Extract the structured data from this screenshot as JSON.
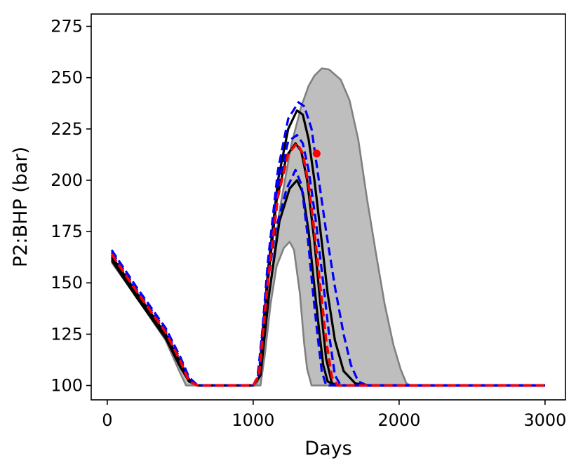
{
  "chart_data": {
    "type": "line",
    "title": "",
    "xlabel": "Days",
    "ylabel": "P2:BHP (bar)",
    "xlim": [
      -110,
      3140
    ],
    "ylim": [
      93,
      281
    ],
    "xticks": [
      0,
      1000,
      2000,
      3000
    ],
    "yticks": [
      100,
      125,
      150,
      175,
      200,
      225,
      250,
      275
    ],
    "grid": false,
    "legend": "none",
    "colors": {
      "envelope_fill": "#bebebe",
      "envelope_edge": "#808080",
      "black": "#000000",
      "blue": "#0000ff",
      "red": "#ff0000",
      "observed": "#ff0000"
    },
    "envelope": {
      "upper": [
        [
          30,
          163
        ],
        [
          200,
          146
        ],
        [
          400,
          125
        ],
        [
          500,
          112
        ],
        [
          560,
          102
        ],
        [
          600,
          100
        ],
        [
          1020,
          100
        ],
        [
          1045,
          104
        ],
        [
          1100,
          140
        ],
        [
          1180,
          185
        ],
        [
          1260,
          217
        ],
        [
          1330,
          236
        ],
        [
          1380,
          246
        ],
        [
          1420,
          251
        ],
        [
          1470,
          254.5
        ],
        [
          1520,
          254
        ],
        [
          1600,
          249
        ],
        [
          1660,
          239
        ],
        [
          1720,
          220
        ],
        [
          1780,
          191
        ],
        [
          1840,
          165
        ],
        [
          1900,
          140
        ],
        [
          1960,
          120
        ],
        [
          2010,
          108
        ],
        [
          2050,
          101
        ],
        [
          2080,
          100
        ],
        [
          3000,
          100
        ]
      ],
      "lower": [
        [
          30,
          160
        ],
        [
          200,
          143
        ],
        [
          400,
          122
        ],
        [
          500,
          106
        ],
        [
          540,
          100
        ],
        [
          1050,
          100
        ],
        [
          1080,
          115
        ],
        [
          1120,
          140
        ],
        [
          1160,
          158
        ],
        [
          1210,
          167
        ],
        [
          1250,
          170
        ],
        [
          1280,
          166
        ],
        [
          1320,
          145
        ],
        [
          1350,
          120
        ],
        [
          1370,
          108
        ],
        [
          1400,
          100
        ],
        [
          3000,
          100
        ]
      ]
    },
    "series": [
      {
        "color": "black",
        "dash": "solid",
        "width": 3.2,
        "points": [
          [
            30,
            163
          ],
          [
            200,
            145
          ],
          [
            400,
            125
          ],
          [
            500,
            111
          ],
          [
            560,
            103
          ],
          [
            620,
            100
          ],
          [
            1000,
            100
          ],
          [
            1040,
            104
          ],
          [
            1100,
            155
          ],
          [
            1170,
            200
          ],
          [
            1240,
            225
          ],
          [
            1300,
            234
          ],
          [
            1340,
            232
          ],
          [
            1380,
            220
          ],
          [
            1420,
            200
          ],
          [
            1470,
            170
          ],
          [
            1510,
            145
          ],
          [
            1560,
            122
          ],
          [
            1620,
            107
          ],
          [
            1700,
            101
          ],
          [
            1800,
            100
          ],
          [
            3000,
            100
          ]
        ]
      },
      {
        "color": "black",
        "dash": "solid",
        "width": 3.2,
        "points": [
          [
            30,
            162
          ],
          [
            200,
            144
          ],
          [
            400,
            124
          ],
          [
            500,
            110
          ],
          [
            560,
            102
          ],
          [
            620,
            100
          ],
          [
            1000,
            100
          ],
          [
            1040,
            104
          ],
          [
            1100,
            150
          ],
          [
            1160,
            190
          ],
          [
            1230,
            212
          ],
          [
            1290,
            218
          ],
          [
            1330,
            214
          ],
          [
            1370,
            200
          ],
          [
            1420,
            170
          ],
          [
            1460,
            140
          ],
          [
            1500,
            113
          ],
          [
            1540,
            101
          ],
          [
            1600,
            100
          ],
          [
            3000,
            100
          ]
        ]
      },
      {
        "color": "black",
        "dash": "solid",
        "width": 3.2,
        "points": [
          [
            30,
            161
          ],
          [
            200,
            143
          ],
          [
            400,
            123
          ],
          [
            500,
            109
          ],
          [
            560,
            102
          ],
          [
            620,
            100
          ],
          [
            1000,
            100
          ],
          [
            1050,
            105
          ],
          [
            1110,
            145
          ],
          [
            1180,
            180
          ],
          [
            1250,
            196
          ],
          [
            1300,
            200
          ],
          [
            1340,
            194
          ],
          [
            1380,
            175
          ],
          [
            1420,
            148
          ],
          [
            1450,
            128
          ],
          [
            1480,
            110
          ],
          [
            1510,
            102
          ],
          [
            1560,
            100
          ],
          [
            3000,
            100
          ]
        ]
      },
      {
        "color": "blue",
        "dash": "dashed",
        "width": 3.2,
        "points": [
          [
            30,
            166
          ],
          [
            200,
            148
          ],
          [
            400,
            128
          ],
          [
            500,
            114
          ],
          [
            560,
            104
          ],
          [
            620,
            100
          ],
          [
            1000,
            100
          ],
          [
            1040,
            106
          ],
          [
            1100,
            160
          ],
          [
            1170,
            205
          ],
          [
            1240,
            230
          ],
          [
            1310,
            238
          ],
          [
            1350,
            236
          ],
          [
            1400,
            225
          ],
          [
            1450,
            200
          ],
          [
            1500,
            175
          ],
          [
            1560,
            148
          ],
          [
            1620,
            125
          ],
          [
            1670,
            110
          ],
          [
            1720,
            102
          ],
          [
            1780,
            100
          ],
          [
            3000,
            100
          ]
        ]
      },
      {
        "color": "blue",
        "dash": "dashed",
        "width": 3.2,
        "points": [
          [
            30,
            165
          ],
          [
            200,
            147
          ],
          [
            400,
            127
          ],
          [
            500,
            113
          ],
          [
            560,
            103
          ],
          [
            620,
            100
          ],
          [
            1000,
            100
          ],
          [
            1040,
            105
          ],
          [
            1100,
            155
          ],
          [
            1170,
            198
          ],
          [
            1240,
            219
          ],
          [
            1300,
            222
          ],
          [
            1340,
            218
          ],
          [
            1380,
            205
          ],
          [
            1430,
            180
          ],
          [
            1480,
            150
          ],
          [
            1520,
            125
          ],
          [
            1560,
            105
          ],
          [
            1600,
            100
          ],
          [
            3000,
            100
          ]
        ]
      },
      {
        "color": "blue",
        "dash": "dashed",
        "width": 3.2,
        "points": [
          [
            30,
            164
          ],
          [
            200,
            146
          ],
          [
            400,
            126
          ],
          [
            500,
            112
          ],
          [
            560,
            102
          ],
          [
            620,
            100
          ],
          [
            1000,
            100
          ],
          [
            1030,
            104
          ],
          [
            1090,
            145
          ],
          [
            1150,
            175
          ],
          [
            1230,
            196
          ],
          [
            1290,
            205
          ],
          [
            1330,
            198
          ],
          [
            1370,
            175
          ],
          [
            1410,
            145
          ],
          [
            1440,
            125
          ],
          [
            1470,
            107
          ],
          [
            1500,
            100
          ],
          [
            3000,
            100
          ]
        ]
      },
      {
        "color": "red",
        "dash": "dashed",
        "width": 3.6,
        "points": [
          [
            30,
            164
          ],
          [
            200,
            146
          ],
          [
            400,
            126
          ],
          [
            500,
            112
          ],
          [
            560,
            102
          ],
          [
            620,
            100
          ],
          [
            1000,
            100
          ],
          [
            1040,
            105
          ],
          [
            1100,
            150
          ],
          [
            1170,
            192
          ],
          [
            1240,
            213
          ],
          [
            1300,
            218
          ],
          [
            1340,
            213
          ],
          [
            1380,
            198
          ],
          [
            1420,
            175
          ],
          [
            1460,
            148
          ],
          [
            1500,
            122
          ],
          [
            1540,
            104
          ],
          [
            1580,
            100
          ],
          [
            3000,
            100
          ]
        ]
      }
    ],
    "observed_points": [
      {
        "x": 1435,
        "y": 213
      }
    ]
  }
}
